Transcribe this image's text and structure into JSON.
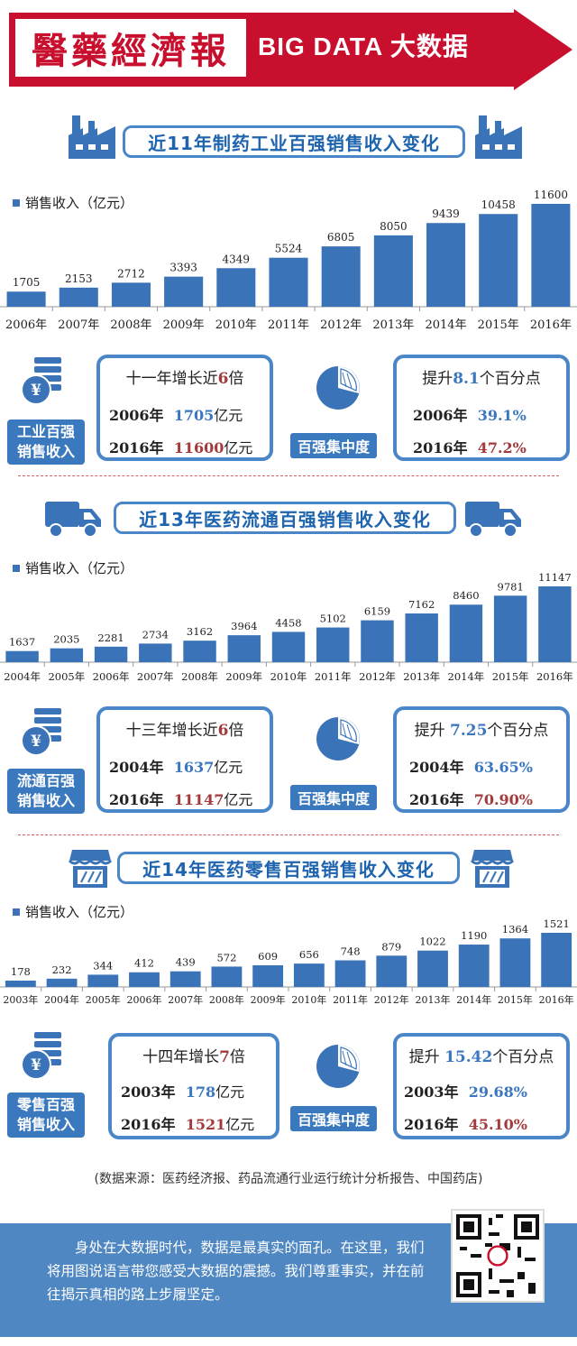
{
  "header": {
    "logo_text": "醫藥經濟報",
    "banner_text": "BIG DATA  大数据",
    "colors": {
      "brand_red": "#c8102e",
      "accent_blue": "#3a73b8"
    }
  },
  "sections": [
    {
      "title": "近11年制药工业百强销售收入变化",
      "icon": "factory-icon",
      "legend": "销售收入（亿元）",
      "label": [
        "工业百强",
        "销售收入"
      ],
      "growth": {
        "title_prefix": "十一年增长近",
        "title_mult": "6",
        "title_suffix": "倍",
        "rows": [
          {
            "year": "2006年",
            "value": "1705",
            "unit": "亿元",
            "tone": "blue"
          },
          {
            "year": "2016年",
            "value": "11600",
            "unit": "亿元",
            "tone": "red"
          }
        ]
      },
      "concentration_label": "百强集中度",
      "concentration": {
        "title_prefix": "提升",
        "title_value": "8.1",
        "title_suffix": "个百分点",
        "rows": [
          {
            "year": "2006年",
            "value": "39.1%",
            "tone": "blue"
          },
          {
            "year": "2016年",
            "value": "47.2%",
            "tone": "red"
          }
        ]
      }
    },
    {
      "title": "近13年医药流通百强销售收入变化",
      "icon": "truck-icon",
      "legend": "销售收入（亿元）",
      "label": [
        "流通百强",
        "销售收入"
      ],
      "growth": {
        "title_prefix": "十三年增长近",
        "title_mult": "6",
        "title_suffix": "倍",
        "rows": [
          {
            "year": "2004年",
            "value": "1637",
            "unit": "亿元",
            "tone": "blue"
          },
          {
            "year": "2016年",
            "value": "11147",
            "unit": "亿元",
            "tone": "red"
          }
        ]
      },
      "concentration_label": "百强集中度",
      "concentration": {
        "title_prefix": "提升 ",
        "title_value": "7.25",
        "title_suffix": "个百分点",
        "rows": [
          {
            "year": "2004年",
            "value": "63.65%",
            "tone": "blue"
          },
          {
            "year": "2016年",
            "value": "70.90%",
            "tone": "red"
          }
        ]
      }
    },
    {
      "title": "近14年医药零售百强销售收入变化",
      "icon": "store-icon",
      "legend": "销售收入（亿元）",
      "label": [
        "零售百强",
        "销售收入"
      ],
      "growth": {
        "title_prefix": "十四年增长",
        "title_mult": "7",
        "title_suffix": "倍",
        "rows": [
          {
            "year": "2003年",
            "value": "178",
            "unit": "亿元",
            "tone": "blue"
          },
          {
            "year": "2016年",
            "value": "1521",
            "unit": "亿元",
            "tone": "red"
          }
        ]
      },
      "concentration_label": "百强集中度",
      "concentration": {
        "title_prefix": "提升 ",
        "title_value": "15.42",
        "title_suffix": "个百分点",
        "rows": [
          {
            "year": "2003年",
            "value": "29.68%",
            "tone": "blue"
          },
          {
            "year": "2016年",
            "value": "45.10%",
            "tone": "red"
          }
        ]
      }
    }
  ],
  "chart_data": [
    {
      "type": "bar",
      "title": "近11年制药工业百强销售收入变化",
      "ylabel": "销售收入（亿元）",
      "categories": [
        "2006年",
        "2007年",
        "2008年",
        "2009年",
        "2010年",
        "2011年",
        "2012年",
        "2013年",
        "2014年",
        "2015年",
        "2016年"
      ],
      "values": [
        1705,
        2153,
        2712,
        3393,
        4349,
        5524,
        6805,
        8050,
        9439,
        10458,
        11600
      ],
      "color": "#3a73b8"
    },
    {
      "type": "bar",
      "title": "近13年医药流通百强销售收入变化",
      "ylabel": "销售收入（亿元）",
      "categories": [
        "2004年",
        "2005年",
        "2006年",
        "2007年",
        "2008年",
        "2009年",
        "2010年",
        "2011年",
        "2012年",
        "2013年",
        "2014年",
        "2015年",
        "2016年"
      ],
      "values": [
        1637,
        2035,
        2281,
        2734,
        3162,
        3964,
        4458,
        5102,
        6159,
        7162,
        8460,
        9781,
        11147
      ],
      "color": "#3a73b8"
    },
    {
      "type": "bar",
      "title": "近14年医药零售百强销售收入变化",
      "ylabel": "销售收入（亿元）",
      "categories": [
        "2003年",
        "2004年",
        "2005年",
        "2006年",
        "2007年",
        "2008年",
        "2009年",
        "2010年",
        "2011年",
        "2012年",
        "2013年",
        "2014年",
        "2015年",
        "2016年"
      ],
      "values": [
        178,
        232,
        344,
        412,
        439,
        572,
        609,
        656,
        748,
        879,
        1022,
        1190,
        1364,
        1521
      ],
      "color": "#3a73b8"
    }
  ],
  "source": "(数据来源：医药经济报、药品流通行业运行统计分析报告、中国药店)",
  "footer": {
    "text": "身处在大数据时代，数据是最真实的面孔。在这里，我们将用图说语言带您感受大数据的震撼。我们尊重事实，并在前往揭示真相的路上步履坚定。",
    "qr": "qr-code"
  }
}
